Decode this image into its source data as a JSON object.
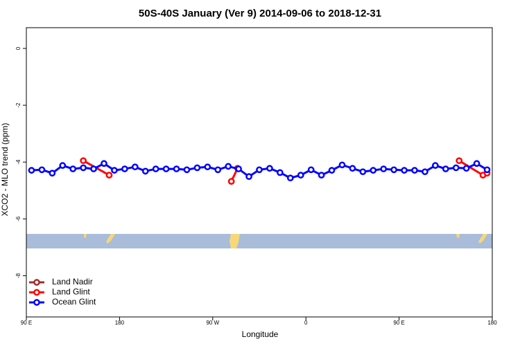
{
  "chart_data": {
    "type": "line",
    "title": "50S-40S January (Ver 9)   2014-09-06 to 2018-12-31",
    "xlabel": "Longitude",
    "ylabel": "XCO2 - MLO trend (ppm)",
    "xlim": [
      90,
      540
    ],
    "xticks": [
      {
        "value": 90,
        "label": "90 E"
      },
      180,
      {
        "value": 270,
        "label": "90 W"
      },
      {
        "value": 360,
        "label": "0"
      },
      {
        "value": 450,
        "label": "90 E"
      },
      {
        "value": 540,
        "label": "180"
      }
    ],
    "ylim": [
      -9.45,
      0.73
    ],
    "yticks": [
      0,
      -2,
      -4,
      -6,
      -8
    ],
    "legend": "bottom-left",
    "series": [
      {
        "name": "Land Nadir",
        "color": "#a52a2a",
        "x": [],
        "values": []
      },
      {
        "name": "Land Glint",
        "color": "#ff0000",
        "x": [
          145,
          170,
          250,
          288,
          294,
          400,
          508,
          531,
          535
        ],
        "values": [
          -3.95,
          -4.46,
          null,
          -4.68,
          -4.22,
          null,
          -3.95,
          -4.46,
          -4.39
        ]
      },
      {
        "name": "Ocean Glint",
        "color": "#0000ff",
        "x": [
          95,
          105,
          115,
          125,
          135,
          145,
          155,
          165,
          175,
          185,
          195,
          205,
          215,
          225,
          235,
          245,
          255,
          265,
          275,
          285,
          295,
          305,
          315,
          325,
          335,
          345,
          355,
          365,
          375,
          385,
          395,
          405,
          415,
          425,
          435,
          445,
          455,
          465,
          475,
          485,
          495,
          505,
          515,
          525,
          535
        ],
        "values": [
          -4.29,
          -4.27,
          -4.39,
          -4.12,
          -4.24,
          -4.2,
          -4.24,
          -4.05,
          -4.29,
          -4.24,
          -4.17,
          -4.32,
          -4.24,
          -4.24,
          -4.24,
          -4.27,
          -4.2,
          -4.17,
          -4.27,
          -4.15,
          -4.24,
          -4.51,
          -4.27,
          -4.22,
          -4.37,
          -4.56,
          -4.46,
          -4.27,
          -4.46,
          -4.29,
          -4.1,
          -4.22,
          -4.34,
          -4.29,
          -4.24,
          -4.27,
          -4.29,
          -4.29,
          -4.34,
          -4.12,
          -4.24,
          -4.2,
          -4.22,
          -4.05,
          -4.27
        ]
      }
    ]
  }
}
